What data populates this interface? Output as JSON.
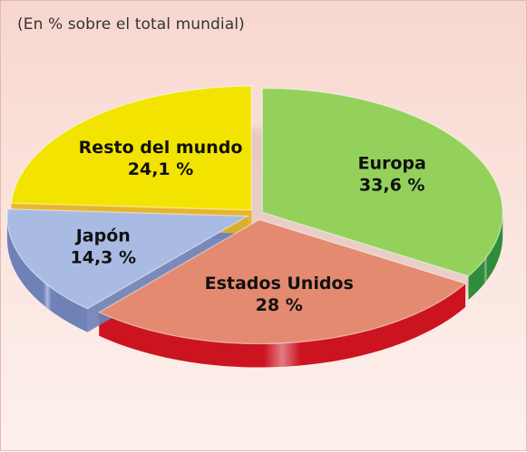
{
  "subtitle": "(En % sobre el total mundial)",
  "chart_data": {
    "type": "pie",
    "style": "3d-exploded",
    "title": "",
    "subtitle": "(En % sobre el total mundial)",
    "slices": [
      {
        "label": "Europa",
        "value": 33.6,
        "value_label": "33,6 %",
        "color": "#93d15a",
        "side_color": "#2f8c3a"
      },
      {
        "label": "Estados Unidos",
        "value": 28,
        "value_label": "28 %",
        "color": "#e48a70",
        "side_color": "#cc1420"
      },
      {
        "label": "Japón",
        "value": 14.3,
        "value_label": "14,3 %",
        "color": "#a9bbe3",
        "side_color": "#6f82b8"
      },
      {
        "label": "Resto del mundo",
        "value": 24.1,
        "value_label": "24,1 %",
        "color": "#f2e400",
        "side_color": "#e6b21e"
      }
    ]
  }
}
